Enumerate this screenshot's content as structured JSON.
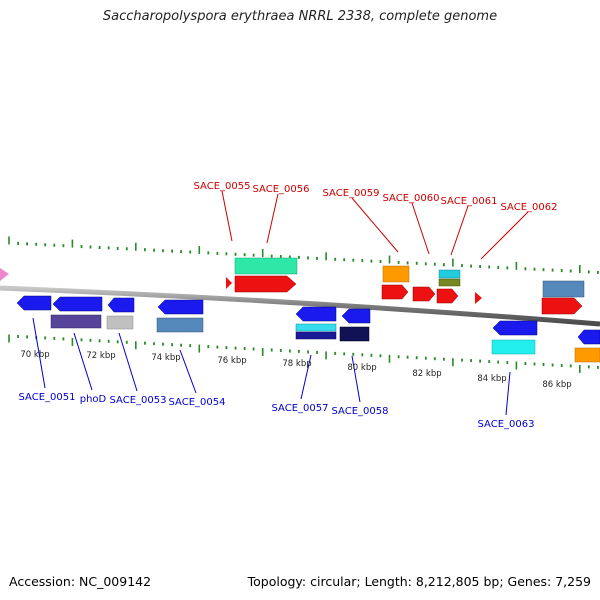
{
  "title": "Saccharopolyspora erythraea NRRL 2338, complete genome",
  "footer": {
    "accession": "Accession: NC_009142",
    "topology": "Topology: circular; Length: 8,212,805 bp; Genes: 7,259"
  },
  "scale": {
    "ticks": [
      "70 kbp",
      "72 kbp",
      "74 kbp",
      "76 kbp",
      "78 kbp",
      "80 kbp",
      "82 kbp",
      "84 kbp",
      "86 kbp"
    ]
  },
  "genes": {
    "top": [
      "SACE_0055",
      "SACE_0056",
      "SACE_0059",
      "SACE_0060",
      "SACE_0061",
      "SACE_0062"
    ],
    "bottom": [
      "SACE_0051",
      "phoD",
      "SACE_0053",
      "SACE_0054",
      "SACE_0057",
      "SACE_0058",
      "SACE_0063"
    ]
  },
  "colors": {
    "top_label": "#cc0000",
    "bottom_label": "#0000cc",
    "tick": "#2a8a2a",
    "backbone": "#8a8a8a"
  }
}
